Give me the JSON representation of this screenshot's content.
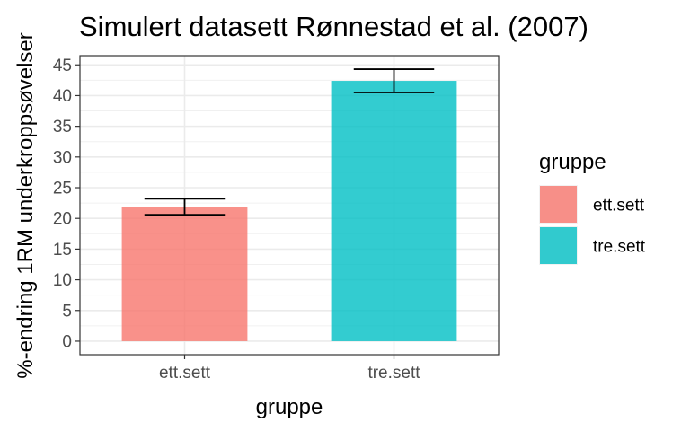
{
  "chart_data": {
    "type": "bar",
    "title": "Simulert datasett Rønnestad et al. (2007)",
    "xlabel": "gruppe",
    "ylabel": "%-endring 1RM underkroppsøvelser",
    "categories": [
      "ett.sett",
      "tre.sett"
    ],
    "values": [
      21.9,
      42.4
    ],
    "error_low": [
      20.6,
      40.5
    ],
    "error_high": [
      23.2,
      44.3
    ],
    "colors": [
      "#F8766D",
      "#00BFC4"
    ],
    "ylim": [
      -2.2,
      46.5
    ],
    "yticks": [
      0,
      5,
      10,
      15,
      20,
      25,
      30,
      35,
      40,
      45
    ],
    "grid": true,
    "legend": {
      "title": "gruppe",
      "position": "right",
      "entries": [
        "ett.sett",
        "tre.sett"
      ]
    }
  }
}
